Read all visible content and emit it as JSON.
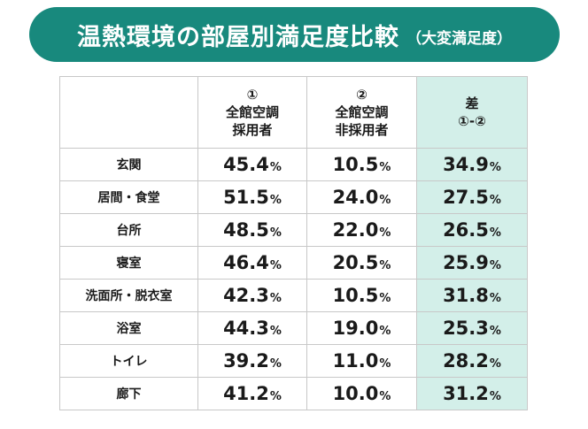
{
  "title": {
    "main": "温熱環境の部屋別満足度比較",
    "sub": "（大変満足度）"
  },
  "table": {
    "headers": {
      "a": [
        "①",
        "全館空調",
        "採用者"
      ],
      "b": [
        "②",
        "全館空調",
        "非採用者"
      ],
      "c": [
        "差",
        "①-②"
      ]
    },
    "unit": "%",
    "rows": [
      {
        "label": "玄関",
        "a": "45.4",
        "b": "10.5",
        "c": "34.9"
      },
      {
        "label": "居間・食堂",
        "a": "51.5",
        "b": "24.0",
        "c": "27.5"
      },
      {
        "label": "台所",
        "a": "48.5",
        "b": "22.0",
        "c": "26.5"
      },
      {
        "label": "寝室",
        "a": "46.4",
        "b": "20.5",
        "c": "25.9"
      },
      {
        "label": "洗面所・脱衣室",
        "a": "42.3",
        "b": "10.5",
        "c": "31.8"
      },
      {
        "label": "浴室",
        "a": "44.3",
        "b": "19.0",
        "c": "25.3"
      },
      {
        "label": "トイレ",
        "a": "39.2",
        "b": "11.0",
        "c": "28.2"
      },
      {
        "label": "廊下",
        "a": "41.2",
        "b": "10.0",
        "c": "31.2"
      }
    ]
  },
  "colors": {
    "title_bg": "#18897d",
    "diff_bg": "#d3efe9",
    "border": "#c8c8c8"
  }
}
